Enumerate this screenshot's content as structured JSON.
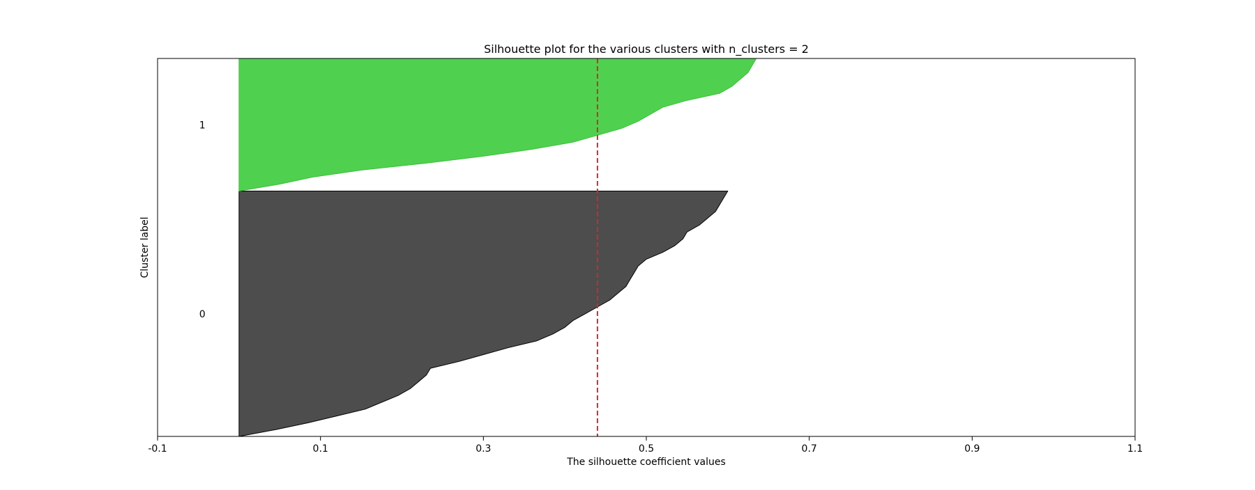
{
  "chart_data": {
    "type": "area",
    "title": "Silhouette plot for the various clusters with n_clusters = 2",
    "xlabel": "The silhouette coefficient values",
    "ylabel": "Cluster label",
    "xlim": [
      -0.1,
      1.1
    ],
    "xticks": [
      -0.1,
      0.1,
      0.3,
      0.5,
      0.7,
      0.9,
      1.1
    ],
    "xtick_labels": [
      "-0.1",
      "0.1",
      "0.3",
      "0.5",
      "0.7",
      "0.9",
      "1.1"
    ],
    "yticks": [],
    "grid": false,
    "average_silhouette_score": 0.44,
    "average_line_color": "#d62728",
    "clusters": [
      {
        "label": "0",
        "color": "#4d4d4d",
        "edge_color": "#000000",
        "silhouette_values": [
          0.6,
          0.595,
          0.59,
          0.585,
          0.575,
          0.565,
          0.55,
          0.545,
          0.535,
          0.52,
          0.5,
          0.49,
          0.485,
          0.48,
          0.475,
          0.465,
          0.455,
          0.44,
          0.425,
          0.41,
          0.4,
          0.385,
          0.365,
          0.33,
          0.3,
          0.27,
          0.235,
          0.23,
          0.22,
          0.21,
          0.195,
          0.175,
          0.155,
          0.12,
          0.085,
          0.045,
          0.0
        ]
      },
      {
        "label": "1",
        "color": "#4fd14f",
        "edge_color": "#3bbf3b",
        "silhouette_values": [
          0.635,
          0.63,
          0.625,
          0.615,
          0.605,
          0.59,
          0.55,
          0.52,
          0.505,
          0.49,
          0.47,
          0.44,
          0.41,
          0.36,
          0.3,
          0.23,
          0.15,
          0.09,
          0.05,
          0.0
        ]
      }
    ]
  }
}
